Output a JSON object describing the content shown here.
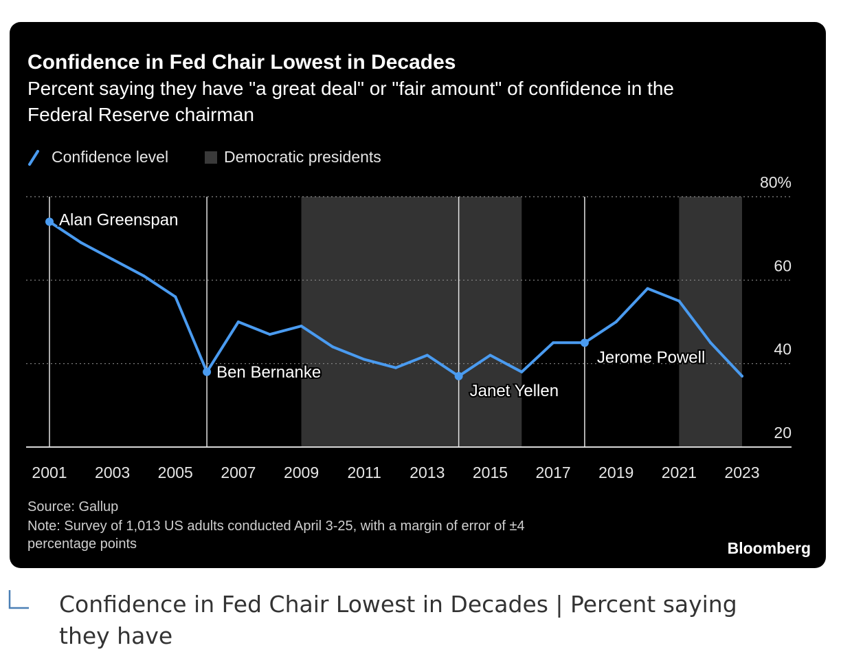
{
  "chart": {
    "title": "Confidence in Fed Chair Lowest in Decades",
    "subtitle_line1": "Percent saying they have \"a great deal\" or \"fair amount\" of confidence in the",
    "subtitle_line2": "Federal Reserve chairman",
    "legend": {
      "line_label": "Confidence level",
      "band_label": "Democratic presidents"
    },
    "source": "Source: Gallup",
    "note_line1": "Note: Survey of 1,013 US adults conducted April 3-25, with a margin of error of ±4",
    "note_line2": "percentage points",
    "brand": "Bloomberg"
  },
  "colors": {
    "background": "#000000",
    "line": "#4A9BF0",
    "band": "#333333",
    "text": "#ffffff",
    "muted_text": "#cfcfcf"
  },
  "caption": {
    "text": "Confidence in Fed Chair Lowest in Decades | Percent saying they have",
    "icon": "corner-reply-icon"
  },
  "chart_data": {
    "type": "line",
    "title": "Confidence in Fed Chair Lowest in Decades",
    "subtitle": "Percent saying they have \"a great deal\" or \"fair amount\" of confidence in the Federal Reserve chairman",
    "xlabel": "",
    "ylabel": "",
    "xlim": [
      2001,
      2023
    ],
    "ylim": [
      20,
      80
    ],
    "x_ticks": [
      "2001",
      "2003",
      "2005",
      "2007",
      "2009",
      "2011",
      "2013",
      "2015",
      "2017",
      "2019",
      "2021",
      "2023"
    ],
    "y_ticks": [
      "80%",
      "60",
      "40",
      "20"
    ],
    "y_tick_values": [
      80,
      60,
      40,
      20
    ],
    "series": [
      {
        "name": "Confidence level",
        "x": [
          2001,
          2002,
          2003,
          2004,
          2005,
          2006,
          2007,
          2008,
          2009,
          2010,
          2011,
          2012,
          2013,
          2014,
          2015,
          2016,
          2017,
          2018,
          2019,
          2020,
          2021,
          2022,
          2023
        ],
        "values": [
          74,
          69,
          65,
          61,
          56,
          38,
          50,
          47,
          49,
          44,
          41,
          39,
          42,
          37,
          42,
          38,
          45,
          45,
          50,
          58,
          55,
          45,
          37
        ]
      }
    ],
    "bands": [
      {
        "name": "Democratic presidents",
        "start": 2009,
        "end": 2016
      },
      {
        "name": "Democratic presidents",
        "start": 2021,
        "end": 2023
      }
    ],
    "annotations": [
      {
        "x": 2001,
        "y": 74,
        "label": "Alan Greenspan"
      },
      {
        "x": 2006,
        "y": 38,
        "label": "Ben Bernanke"
      },
      {
        "x": 2014,
        "y": 37,
        "label": "Janet Yellen"
      },
      {
        "x": 2018,
        "y": 45,
        "label": "Jerome Powell"
      }
    ],
    "grid": true,
    "legend_position": "top-left"
  }
}
